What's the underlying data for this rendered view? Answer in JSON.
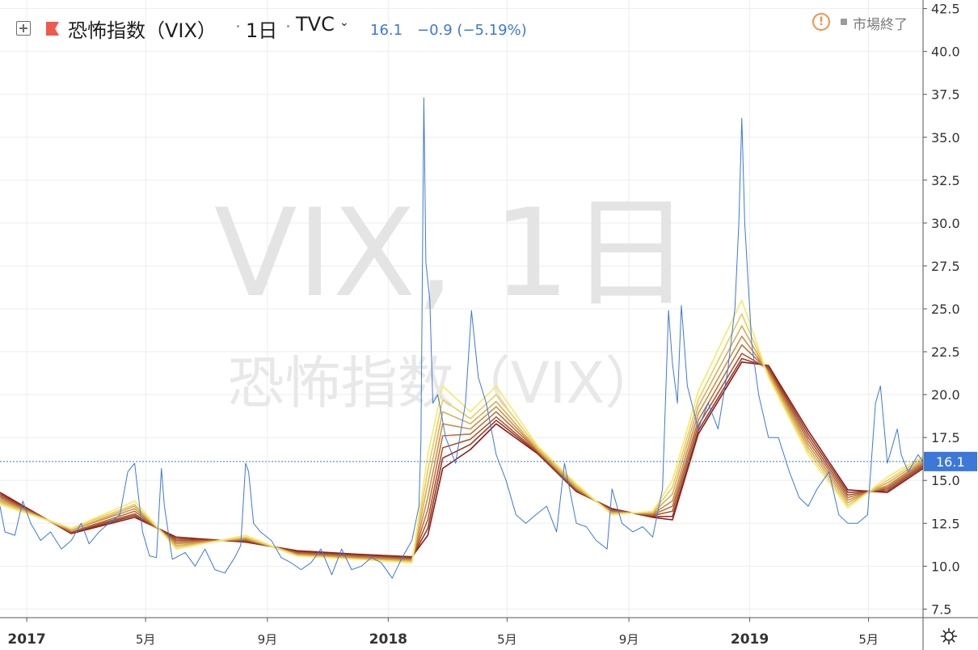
{
  "header": {
    "title": "恐怖指数（VIX）",
    "interval": "1日",
    "exchange": "TVC",
    "last_price": "16.1",
    "change": "−0.9 (−5.19%)",
    "market_status": "市場終了",
    "status_icon_glyph": "!"
  },
  "watermark": {
    "line1": "VIX, 1日",
    "line2": "恐怖指数（VIX）"
  },
  "icons": {
    "add": "plus-square-icon",
    "symbol": "flag-icon",
    "status": "alert-circle-icon",
    "settings": "gear-icon"
  },
  "colors": {
    "price_line": "#3c78d8",
    "ribbon_start": "#f6e86a",
    "ribbon_end": "#8b1a1a",
    "status_accent": "#f0924a",
    "price_label_bg": "#3c78d8",
    "flag": "#ef5a4e"
  },
  "chart_data": {
    "type": "line",
    "title": "恐怖指数（VIX）",
    "last_value_label": "16.1",
    "x_range": [
      "2016-12-05",
      "2019-06-25"
    ],
    "ylim": [
      7.0,
      43.0
    ],
    "y_ticks": [
      7.5,
      10.0,
      12.5,
      15.0,
      17.5,
      20.0,
      22.5,
      25.0,
      27.5,
      30.0,
      32.5,
      35.0,
      37.5,
      40.0,
      42.5
    ],
    "y_tick_labels": [
      "7.5",
      "10.0",
      "12.5",
      "15.0",
      "17.5",
      "20.0",
      "22.5",
      "25.0",
      "27.5",
      "30.0",
      "32.5",
      "35.0",
      "37.5",
      "40.0",
      "42.5"
    ],
    "x_ticks": [
      {
        "date": "2017-01-01",
        "label": "2017",
        "major": true
      },
      {
        "date": "2017-05-01",
        "label": "5月",
        "major": false
      },
      {
        "date": "2017-09-01",
        "label": "9月",
        "major": false
      },
      {
        "date": "2018-01-01",
        "label": "2018",
        "major": true
      },
      {
        "date": "2018-05-01",
        "label": "5月",
        "major": false
      },
      {
        "date": "2018-09-01",
        "label": "9月",
        "major": false
      },
      {
        "date": "2019-01-01",
        "label": "2019",
        "major": true
      },
      {
        "date": "2019-05-01",
        "label": "5月",
        "major": false
      }
    ],
    "grid": true,
    "price_series": {
      "x": [
        "2016-12-05",
        "2016-12-10",
        "2016-12-20",
        "2016-12-28",
        "2017-01-05",
        "2017-01-15",
        "2017-01-25",
        "2017-02-05",
        "2017-02-15",
        "2017-02-25",
        "2017-03-05",
        "2017-03-15",
        "2017-03-25",
        "2017-04-05",
        "2017-04-13",
        "2017-04-20",
        "2017-04-28",
        "2017-05-05",
        "2017-05-12",
        "2017-05-17",
        "2017-05-20",
        "2017-05-28",
        "2017-06-10",
        "2017-06-20",
        "2017-06-30",
        "2017-07-10",
        "2017-07-20",
        "2017-07-30",
        "2017-08-05",
        "2017-08-10",
        "2017-08-13",
        "2017-08-18",
        "2017-08-25",
        "2017-09-05",
        "2017-09-15",
        "2017-09-25",
        "2017-10-05",
        "2017-10-15",
        "2017-10-25",
        "2017-11-05",
        "2017-11-15",
        "2017-11-25",
        "2017-12-05",
        "2017-12-15",
        "2017-12-25",
        "2018-01-05",
        "2018-01-15",
        "2018-01-25",
        "2018-02-01",
        "2018-02-03",
        "2018-02-06",
        "2018-02-08",
        "2018-02-12",
        "2018-02-15",
        "2018-02-20",
        "2018-02-28",
        "2018-03-10",
        "2018-03-20",
        "2018-03-26",
        "2018-04-02",
        "2018-04-10",
        "2018-04-20",
        "2018-04-30",
        "2018-05-10",
        "2018-05-20",
        "2018-05-30",
        "2018-06-10",
        "2018-06-20",
        "2018-06-28",
        "2018-07-10",
        "2018-07-20",
        "2018-07-30",
        "2018-08-10",
        "2018-08-15",
        "2018-08-25",
        "2018-09-05",
        "2018-09-15",
        "2018-09-25",
        "2018-10-05",
        "2018-10-11",
        "2018-10-15",
        "2018-10-20",
        "2018-10-24",
        "2018-10-30",
        "2018-11-10",
        "2018-11-20",
        "2018-11-30",
        "2018-12-10",
        "2018-12-17",
        "2018-12-21",
        "2018-12-24",
        "2018-12-27",
        "2019-01-03",
        "2019-01-10",
        "2019-01-20",
        "2019-01-30",
        "2019-02-10",
        "2019-02-20",
        "2019-03-01",
        "2019-03-10",
        "2019-03-22",
        "2019-04-01",
        "2019-04-10",
        "2019-04-20",
        "2019-04-30",
        "2019-05-08",
        "2019-05-13",
        "2019-05-20",
        "2019-05-30",
        "2019-06-03",
        "2019-06-10",
        "2019-06-20",
        "2019-06-25"
      ],
      "y": [
        13.5,
        12.0,
        11.8,
        13.8,
        12.5,
        11.5,
        12.0,
        11.0,
        11.5,
        12.5,
        11.3,
        12.0,
        12.5,
        13.0,
        15.5,
        16.0,
        12.0,
        10.6,
        10.5,
        15.7,
        13.5,
        10.4,
        10.8,
        10.0,
        11.0,
        9.8,
        9.6,
        10.5,
        11.2,
        16.0,
        15.5,
        12.5,
        12.0,
        11.5,
        10.5,
        10.2,
        9.8,
        10.2,
        11.0,
        9.5,
        11.0,
        9.8,
        10.0,
        10.5,
        10.2,
        9.3,
        10.5,
        11.5,
        13.5,
        17.3,
        37.3,
        27.7,
        25.5,
        19.5,
        20.0,
        17.5,
        16.0,
        19.5,
        24.9,
        21.0,
        19.5,
        16.5,
        15.0,
        13.0,
        12.5,
        13.0,
        13.5,
        12.0,
        16.0,
        12.5,
        12.3,
        11.5,
        11.0,
        14.5,
        12.5,
        12.0,
        12.3,
        11.7,
        14.5,
        24.9,
        21.8,
        19.5,
        25.2,
        20.5,
        18.0,
        19.5,
        18.0,
        21.5,
        25.0,
        30.0,
        36.1,
        30.0,
        23.0,
        20.0,
        17.5,
        17.5,
        15.5,
        14.0,
        13.5,
        14.5,
        15.5,
        13.0,
        12.5,
        12.5,
        13.0,
        19.5,
        20.5,
        16.0,
        18.0,
        16.5,
        15.5,
        16.5,
        16.1
      ]
    },
    "ribbon_series": [
      {
        "period": 5,
        "x": [
          "2016-12-05",
          "2017-02-15",
          "2017-04-20",
          "2017-06-01",
          "2017-08-10",
          "2017-10-01",
          "2017-12-01",
          "2018-01-25",
          "2018-02-10",
          "2018-02-25",
          "2018-03-25",
          "2018-04-20",
          "2018-06-01",
          "2018-07-10",
          "2018-08-15",
          "2018-09-25",
          "2018-10-15",
          "2018-11-10",
          "2018-12-24",
          "2019-01-20",
          "2019-03-01",
          "2019-04-10",
          "2019-05-20",
          "2019-06-25"
        ],
        "y": [
          13.6,
          12.2,
          13.8,
          11.0,
          11.8,
          10.6,
          10.4,
          10.2,
          16.5,
          20.5,
          19.0,
          20.5,
          17.0,
          14.8,
          13.0,
          13.2,
          15.0,
          20.2,
          25.5,
          21.0,
          16.5,
          13.4,
          15.2,
          16.4
        ]
      },
      {
        "period": 8,
        "x": [
          "2016-12-05",
          "2017-02-15",
          "2017-04-20",
          "2017-06-01",
          "2017-08-10",
          "2017-10-01",
          "2017-12-01",
          "2018-01-25",
          "2018-02-10",
          "2018-02-25",
          "2018-03-25",
          "2018-04-20",
          "2018-06-01",
          "2018-07-10",
          "2018-08-15",
          "2018-09-25",
          "2018-10-15",
          "2018-11-10",
          "2018-12-24",
          "2019-01-20",
          "2019-03-01",
          "2019-04-10",
          "2019-05-20",
          "2019-06-25"
        ],
        "y": [
          13.7,
          12.2,
          13.6,
          11.1,
          11.7,
          10.6,
          10.4,
          10.25,
          15.6,
          19.7,
          18.6,
          20.0,
          16.9,
          14.7,
          13.05,
          13.15,
          14.6,
          19.7,
          24.7,
          21.1,
          16.7,
          13.55,
          15.0,
          16.3
        ]
      },
      {
        "period": 11,
        "x": [
          "2016-12-05",
          "2017-02-15",
          "2017-04-20",
          "2017-06-01",
          "2017-08-10",
          "2017-10-01",
          "2017-12-01",
          "2018-01-25",
          "2018-02-10",
          "2018-02-25",
          "2018-03-25",
          "2018-04-20",
          "2018-06-01",
          "2018-07-10",
          "2018-08-15",
          "2018-09-25",
          "2018-10-15",
          "2018-11-10",
          "2018-12-24",
          "2019-01-20",
          "2019-03-01",
          "2019-04-10",
          "2019-05-20",
          "2019-06-25"
        ],
        "y": [
          13.8,
          12.1,
          13.5,
          11.2,
          11.65,
          10.65,
          10.45,
          10.3,
          14.8,
          19.0,
          18.3,
          19.6,
          16.8,
          14.6,
          13.1,
          13.1,
          14.2,
          19.3,
          24.0,
          21.2,
          16.9,
          13.7,
          14.85,
          16.2
        ]
      },
      {
        "period": 14,
        "x": [
          "2016-12-05",
          "2017-02-15",
          "2017-04-20",
          "2017-06-01",
          "2017-08-10",
          "2017-10-01",
          "2017-12-01",
          "2018-01-25",
          "2018-02-10",
          "2018-02-25",
          "2018-03-25",
          "2018-04-20",
          "2018-06-01",
          "2018-07-10",
          "2018-08-15",
          "2018-09-25",
          "2018-10-15",
          "2018-11-10",
          "2018-12-24",
          "2019-01-20",
          "2019-03-01",
          "2019-04-10",
          "2019-05-20",
          "2019-06-25"
        ],
        "y": [
          13.9,
          12.1,
          13.35,
          11.3,
          11.6,
          10.7,
          10.5,
          10.35,
          14.0,
          18.3,
          18.0,
          19.3,
          16.75,
          14.55,
          13.15,
          13.05,
          13.8,
          18.9,
          23.4,
          21.3,
          17.1,
          13.85,
          14.7,
          16.1
        ]
      },
      {
        "period": 17,
        "x": [
          "2016-12-05",
          "2017-02-15",
          "2017-04-20",
          "2017-06-01",
          "2017-08-10",
          "2017-10-01",
          "2017-12-01",
          "2018-01-25",
          "2018-02-10",
          "2018-02-25",
          "2018-03-25",
          "2018-04-20",
          "2018-06-01",
          "2018-07-10",
          "2018-08-15",
          "2018-09-25",
          "2018-10-15",
          "2018-11-10",
          "2018-12-24",
          "2019-01-20",
          "2019-03-01",
          "2019-04-10",
          "2019-05-20",
          "2019-06-25"
        ],
        "y": [
          14.0,
          12.0,
          13.2,
          11.4,
          11.55,
          10.75,
          10.55,
          10.4,
          13.3,
          17.6,
          17.7,
          19.0,
          16.7,
          14.5,
          13.2,
          13.0,
          13.5,
          18.5,
          22.9,
          21.4,
          17.3,
          14.0,
          14.6,
          16.0
        ]
      },
      {
        "period": 20,
        "x": [
          "2016-12-05",
          "2017-02-15",
          "2017-04-20",
          "2017-06-01",
          "2017-08-10",
          "2017-10-01",
          "2017-12-01",
          "2018-01-25",
          "2018-02-10",
          "2018-02-25",
          "2018-03-25",
          "2018-04-20",
          "2018-06-01",
          "2018-07-10",
          "2018-08-15",
          "2018-09-25",
          "2018-10-15",
          "2018-11-10",
          "2018-12-24",
          "2019-01-20",
          "2019-03-01",
          "2019-04-10",
          "2019-05-20",
          "2019-06-25"
        ],
        "y": [
          14.1,
          12.0,
          13.05,
          11.5,
          11.5,
          10.8,
          10.6,
          10.45,
          12.7,
          16.9,
          17.4,
          18.7,
          16.65,
          14.45,
          13.25,
          12.95,
          13.2,
          18.2,
          22.4,
          21.5,
          17.5,
          14.15,
          14.5,
          15.9
        ]
      },
      {
        "period": 23,
        "x": [
          "2016-12-05",
          "2017-02-15",
          "2017-04-20",
          "2017-06-01",
          "2017-08-10",
          "2017-10-01",
          "2017-12-01",
          "2018-01-25",
          "2018-02-10",
          "2018-02-25",
          "2018-03-25",
          "2018-04-20",
          "2018-06-01",
          "2018-07-10",
          "2018-08-15",
          "2018-09-25",
          "2018-10-15",
          "2018-11-10",
          "2018-12-24",
          "2019-01-20",
          "2019-03-01",
          "2019-04-10",
          "2019-05-20",
          "2019-06-25"
        ],
        "y": [
          14.2,
          11.95,
          12.95,
          11.6,
          11.45,
          10.85,
          10.65,
          10.5,
          12.2,
          16.3,
          17.1,
          18.5,
          16.6,
          14.4,
          13.3,
          12.9,
          12.9,
          17.9,
          22.1,
          21.6,
          17.7,
          14.3,
          14.4,
          15.8
        ]
      },
      {
        "period": 26,
        "x": [
          "2016-12-05",
          "2017-02-15",
          "2017-04-20",
          "2017-06-01",
          "2017-08-10",
          "2017-10-01",
          "2017-12-01",
          "2018-01-25",
          "2018-02-10",
          "2018-02-25",
          "2018-03-25",
          "2018-04-20",
          "2018-06-01",
          "2018-07-10",
          "2018-08-15",
          "2018-09-25",
          "2018-10-15",
          "2018-11-10",
          "2018-12-24",
          "2019-01-20",
          "2019-03-01",
          "2019-04-10",
          "2019-05-20",
          "2019-06-25"
        ],
        "y": [
          14.3,
          11.9,
          12.85,
          11.7,
          11.4,
          10.9,
          10.7,
          10.55,
          11.8,
          15.7,
          16.8,
          18.3,
          16.55,
          14.35,
          13.35,
          12.85,
          12.7,
          17.7,
          21.9,
          21.7,
          17.9,
          14.45,
          14.3,
          15.7
        ]
      }
    ]
  }
}
